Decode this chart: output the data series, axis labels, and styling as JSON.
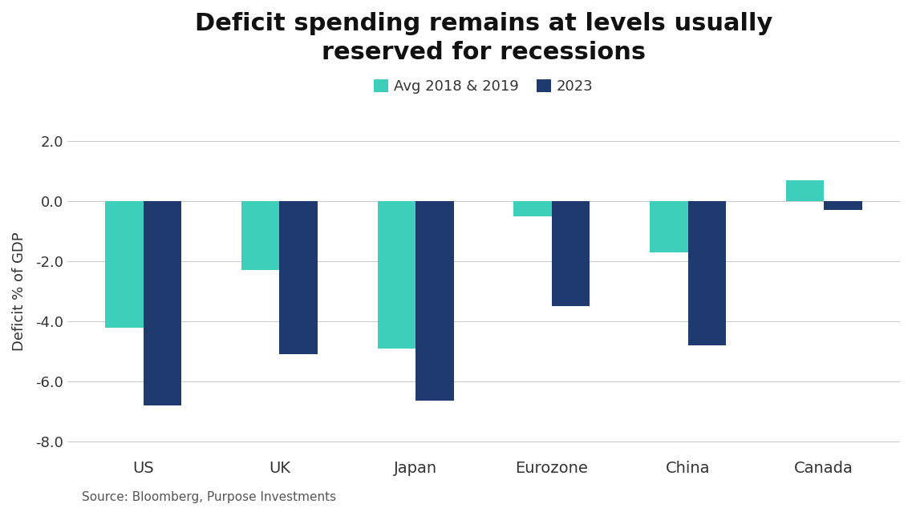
{
  "title": "Deficit spending remains at levels usually\nreserved for recessions",
  "categories": [
    "US",
    "UK",
    "Japan",
    "Eurozone",
    "China",
    "Canada"
  ],
  "avg_2018_2019": [
    -4.2,
    -2.3,
    -4.9,
    -0.5,
    -1.7,
    0.7
  ],
  "val_2023": [
    -6.8,
    -5.1,
    -6.65,
    -3.5,
    -4.8,
    -0.3
  ],
  "color_avg": "#3DCFBA",
  "color_2023": "#1E3A6E",
  "ylabel": "Deficit % of GDP",
  "ylim": [
    -8.5,
    2.5
  ],
  "yticks": [
    2.0,
    0.0,
    -2.0,
    -4.0,
    -6.0,
    -8.0
  ],
  "ytick_labels": [
    "2.0",
    "0.0",
    "-2.0",
    "-4.0",
    "-6.0",
    "-8.0"
  ],
  "legend_label_avg": "Avg 2018 & 2019",
  "legend_label_2023": "2023",
  "source": "Source: Bloomberg, Purpose Investments",
  "background_color": "#ffffff",
  "grid_color": "#cccccc",
  "bar_width": 0.28,
  "title_fontsize": 22,
  "label_fontsize": 13,
  "tick_fontsize": 13,
  "legend_fontsize": 13,
  "source_fontsize": 11
}
